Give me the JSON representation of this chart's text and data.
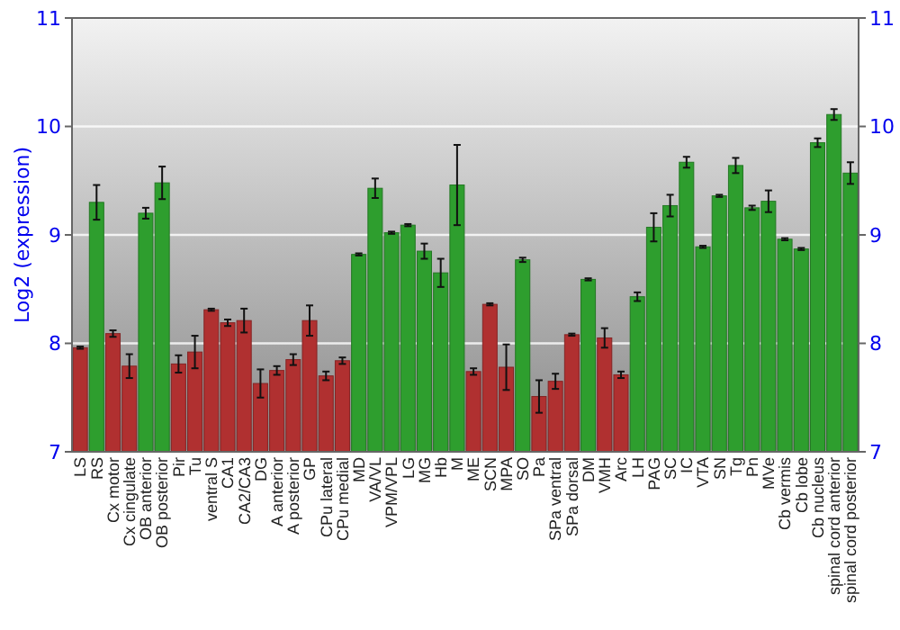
{
  "chart_data": {
    "type": "bar",
    "ylabel": "Log2 (expression)",
    "categories": [
      "LS",
      "RS",
      "Cx motor",
      "Cx cingulate",
      "OB anterior",
      "OB posterior",
      "Pir",
      "Tu",
      "ventral S",
      "CA1",
      "CA2/CA3",
      "DG",
      "A anterior",
      "A posterior",
      "GP",
      "CPu lateral",
      "CPu medial",
      "MD",
      "VA/VL",
      "VPM/VPL",
      "LG",
      "MG",
      "Hb",
      "M",
      "ME",
      "SCN",
      "MPA",
      "SO",
      "Pa",
      "SPa ventral",
      "SPa dorsal",
      "DM",
      "VMH",
      "Arc",
      "LH",
      "PAG",
      "SC",
      "IC",
      "VTA",
      "SN",
      "Tg",
      "Pn",
      "MVe",
      "Cb vermis",
      "Cb lobe",
      "Cb nucleus",
      "spinal cord anterior",
      "spinal cord posterior"
    ],
    "values": [
      7.96,
      9.3,
      8.09,
      7.79,
      9.2,
      9.48,
      7.81,
      7.92,
      8.31,
      8.19,
      8.21,
      7.63,
      7.75,
      7.85,
      8.21,
      7.7,
      7.84,
      8.82,
      9.43,
      9.02,
      9.09,
      8.85,
      8.65,
      9.46,
      7.74,
      8.36,
      7.78,
      8.77,
      7.51,
      7.65,
      8.08,
      8.59,
      8.05,
      7.71,
      8.43,
      9.07,
      9.27,
      9.67,
      8.89,
      9.36,
      9.64,
      9.25,
      9.31,
      8.96,
      8.87,
      9.85,
      10.11,
      9.57
    ],
    "errors": [
      0.01,
      0.16,
      0.03,
      0.11,
      0.05,
      0.15,
      0.08,
      0.15,
      0.01,
      0.03,
      0.11,
      0.13,
      0.04,
      0.05,
      0.14,
      0.04,
      0.03,
      0.01,
      0.09,
      0.01,
      0.01,
      0.07,
      0.13,
      0.37,
      0.03,
      0.01,
      0.21,
      0.02,
      0.15,
      0.07,
      0.01,
      0.01,
      0.09,
      0.03,
      0.04,
      0.13,
      0.1,
      0.05,
      0.01,
      0.01,
      0.07,
      0.02,
      0.1,
      0.01,
      0.01,
      0.04,
      0.05,
      0.1
    ],
    "colors": [
      "#b03030",
      "#2e9e2e",
      "#b03030",
      "#b03030",
      "#2e9e2e",
      "#2e9e2e",
      "#b03030",
      "#b03030",
      "#b03030",
      "#b03030",
      "#b03030",
      "#b03030",
      "#b03030",
      "#b03030",
      "#b03030",
      "#b03030",
      "#b03030",
      "#2e9e2e",
      "#2e9e2e",
      "#2e9e2e",
      "#2e9e2e",
      "#2e9e2e",
      "#2e9e2e",
      "#2e9e2e",
      "#b03030",
      "#b03030",
      "#b03030",
      "#2e9e2e",
      "#b03030",
      "#b03030",
      "#b03030",
      "#2e9e2e",
      "#b03030",
      "#b03030",
      "#2e9e2e",
      "#2e9e2e",
      "#2e9e2e",
      "#2e9e2e",
      "#2e9e2e",
      "#2e9e2e",
      "#2e9e2e",
      "#2e9e2e",
      "#2e9e2e",
      "#2e9e2e",
      "#2e9e2e",
      "#2e9e2e",
      "#2e9e2e",
      "#2e9e2e"
    ],
    "ylim": [
      7,
      11
    ],
    "yticks": [
      7,
      8,
      9,
      10,
      11
    ],
    "y2lim": [
      7,
      11
    ],
    "y2ticks": [
      7,
      8,
      9,
      10,
      11
    ],
    "grid": "y"
  }
}
